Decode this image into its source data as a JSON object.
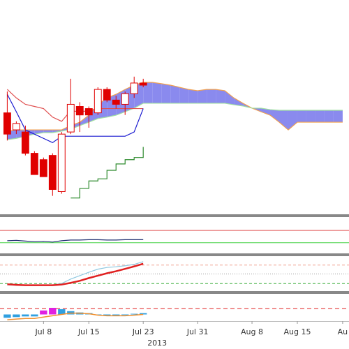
{
  "chart_data": [
    {
      "type": "candlestick",
      "color": "#e00000",
      "x": [
        1,
        2,
        3,
        4,
        5,
        6,
        7,
        8,
        9,
        10,
        11,
        12,
        13,
        14,
        15,
        16,
        17,
        18,
        19,
        20,
        21,
        22,
        23,
        24,
        25,
        26,
        27,
        28,
        29,
        30,
        31,
        32,
        33,
        34,
        35,
        36,
        37,
        38
      ],
      "xlim": [
        0.2,
        38.7
      ],
      "ylim": [
        0,
        100
      ],
      "open": [
        47,
        39,
        38,
        28,
        25,
        27,
        10,
        38,
        50,
        49,
        47,
        58,
        53,
        51,
        56,
        61,
        null,
        null,
        null,
        null,
        null,
        null,
        null,
        null,
        null,
        null,
        null,
        null,
        null,
        null,
        null,
        null,
        null,
        null,
        null,
        null,
        null,
        null
      ],
      "high": [
        57,
        43,
        41,
        29,
        26,
        28,
        38,
        63,
        52,
        50,
        59,
        59,
        55,
        57,
        64,
        63,
        null,
        null,
        null,
        null,
        null,
        null,
        null,
        null,
        null,
        null,
        null,
        null,
        null,
        null,
        null,
        null,
        null,
        null,
        null,
        null,
        null,
        null
      ],
      "low": [
        34,
        37,
        27,
        18,
        17,
        8,
        9,
        37,
        38,
        40,
        46,
        52,
        49,
        46,
        54,
        59,
        null,
        null,
        null,
        null,
        null,
        null,
        null,
        null,
        null,
        null,
        null,
        null,
        null,
        null,
        null,
        null,
        null,
        null,
        null,
        null,
        null,
        null
      ],
      "close": [
        37,
        42,
        28,
        18,
        17,
        11,
        37,
        51,
        46,
        46,
        58,
        53,
        51,
        56,
        61,
        60,
        null,
        null,
        null,
        null,
        null,
        null,
        null,
        null,
        null,
        null,
        null,
        null,
        null,
        null,
        null,
        null,
        null,
        null,
        null,
        null,
        null,
        null
      ],
      "cloud": {
        "fill": "#8a8aee",
        "spans": [
          {
            "color": "#f0a050",
            "values": [
              38.4,
              39,
              39,
              39,
              39,
              39,
              39,
              41,
              42.6,
              45.9,
              50.8,
              54,
              55.7,
              58,
              60,
              61.3,
              61.3,
              60.7,
              60,
              59,
              58,
              57.4,
              58,
              58,
              57.4,
              54,
              51.5,
              49.2,
              47.5,
              45.9,
              42.6,
              39,
              42.6,
              42.6,
              42.6,
              42.6,
              42.6,
              42.6
            ]
          },
          {
            "color": "#a0e0a0",
            "values": [
              34.4,
              35,
              36,
              37,
              37.7,
              37.7,
              38.4,
              39.3,
              41,
              42.6,
              44.3,
              45,
              45.9,
              47.5,
              49.2,
              51.5,
              51.5,
              51.5,
              51.5,
              51.5,
              51.5,
              51.5,
              51.5,
              51.5,
              51.5,
              50.8,
              50.2,
              49.2,
              49.2,
              48.5,
              48.2,
              48.2,
              48.2,
              48.2,
              48.2,
              48.2,
              48.2,
              48.2
            ]
          }
        ]
      },
      "series": [
        {
          "color": "#e05050",
          "values": [
            58,
            54,
            51,
            50,
            49,
            45,
            43,
            48,
            47.5,
            48,
            49,
            49,
            49,
            49,
            49,
            49,
            null,
            null,
            null,
            null,
            null,
            null,
            null,
            null,
            null,
            null,
            null,
            null,
            null,
            null,
            null,
            null,
            null,
            null,
            null,
            null,
            null,
            null
          ]
        },
        {
          "color": "#1a1ad0",
          "values": [
            55.7,
            47.5,
            39,
            37,
            35,
            33,
            36,
            36,
            36,
            36,
            36,
            36,
            36,
            36,
            38,
            49,
            null,
            null,
            null,
            null,
            null,
            null,
            null,
            null,
            null,
            null,
            null,
            null,
            null,
            null,
            null,
            null,
            null,
            null,
            null,
            null,
            null,
            null
          ]
        },
        {
          "color": "#2e8b2e",
          "step": true,
          "values": [
            null,
            null,
            null,
            null,
            null,
            null,
            null,
            7,
            11.5,
            15,
            16,
            20,
            23,
            25,
            26,
            31,
            null,
            null,
            null,
            null,
            null,
            null,
            null,
            null,
            null,
            null,
            null,
            null,
            null,
            null,
            null,
            null,
            null,
            null,
            null,
            null,
            null,
            null
          ]
        }
      ]
    },
    {
      "type": "line",
      "x": [
        1,
        2,
        3,
        4,
        5,
        6,
        7,
        8,
        9,
        10,
        11,
        12,
        13,
        14,
        15,
        16
      ],
      "xlim": [
        0.2,
        38.7
      ],
      "ylim": [
        0,
        100
      ],
      "levels": [
        {
          "value": 65,
          "color": "#e05050"
        },
        {
          "value": 29,
          "color": "#40d040"
        }
      ],
      "series": [
        {
          "color": "#203070",
          "values": [
            35,
            36,
            34,
            32,
            33,
            31,
            35,
            37,
            37,
            38,
            38,
            37,
            37,
            38,
            38,
            38
          ]
        }
      ]
    },
    {
      "type": "line",
      "x": [
        1,
        2,
        3,
        4,
        5,
        6,
        7,
        8,
        9,
        10,
        11,
        12,
        13,
        14,
        15,
        16
      ],
      "xlim": [
        0.2,
        38.7
      ],
      "ylim": [
        0,
        100
      ],
      "levels": [
        {
          "value": 76,
          "color": "#f0a090",
          "dash": "4 3"
        },
        {
          "value": 50,
          "color": "#999999",
          "dash": "1 2"
        },
        {
          "value": 22,
          "color": "#40b040",
          "dash": "4 3"
        }
      ],
      "series": [
        {
          "color": "#90c8e0",
          "values": [
            18,
            17,
            17,
            16,
            17,
            18,
            22,
            35,
            45,
            55,
            64,
            69,
            71,
            74,
            78,
            86
          ]
        },
        {
          "color": "#e02020",
          "width": 2.5,
          "values": [
            20,
            18,
            17,
            17,
            17,
            17,
            19,
            24,
            30,
            38,
            45,
            52,
            58,
            65,
            72,
            80
          ]
        }
      ]
    },
    {
      "type": "bar",
      "x": [
        1,
        2,
        3,
        4,
        5,
        6,
        7,
        8,
        9,
        10,
        11,
        12,
        13,
        14,
        15,
        16
      ],
      "xlim": [
        0.2,
        38.7
      ],
      "ylim": [
        -10,
        30
      ],
      "values": [
        -5,
        -4,
        -3,
        -3,
        6,
        10,
        8,
        5,
        3,
        2,
        -1,
        -2,
        -2,
        -1,
        1,
        2
      ],
      "colors": [
        "#30a0e0",
        "#30a0e0",
        "#30a0e0",
        "#30a0e0",
        "#e020e0",
        "#e020e0",
        "#30a0e0",
        "#30a0e0",
        "#30a0e0",
        "#30a0e0",
        "#30a0e0",
        "#30a0e0",
        "#30a0e0",
        "#30a0e0",
        "#30a0e0",
        "#30a0e0"
      ],
      "levels": [
        {
          "value": 9,
          "color": "#e02020",
          "dash": "6 4"
        }
      ],
      "series": [
        {
          "color": "#f09030",
          "values": [
            -8,
            -7,
            -6,
            -6,
            -4,
            -2,
            0,
            2,
            2,
            1,
            -1,
            -2,
            -2,
            -2,
            -1,
            0
          ]
        }
      ],
      "xticks": [
        {
          "value": 5,
          "label": "Jul 8"
        },
        {
          "value": 10,
          "label": "Jul 15"
        },
        {
          "value": 16,
          "label": "Jul 23"
        },
        {
          "value": 22,
          "label": "Jul 31"
        },
        {
          "value": 28,
          "label": "Aug 8"
        },
        {
          "value": 33,
          "label": "Aug 15"
        },
        {
          "value": 38,
          "label": "Au"
        }
      ],
      "year": {
        "value": 16,
        "label": "2013"
      }
    }
  ]
}
